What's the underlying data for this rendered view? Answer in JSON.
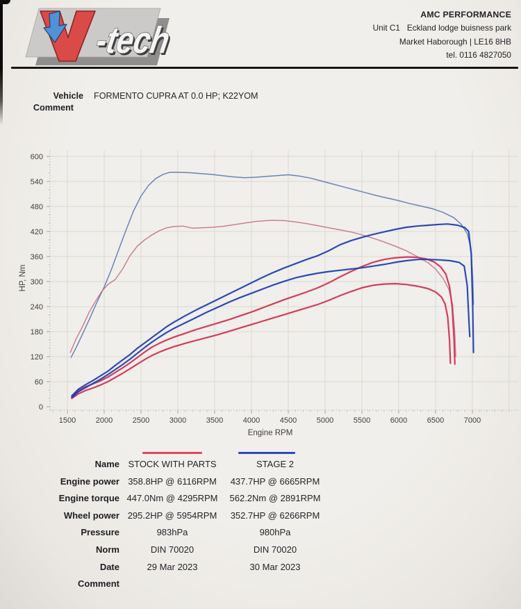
{
  "header": {
    "logo": {
      "text": "V-tech",
      "suffix": "-tech"
    },
    "company": "AMC PERFORMANCE",
    "address_line1": "Unit C1   Eckland lodge buisness park",
    "address_line2": "Market Haborough | LE16 8HB",
    "address_line3": "tel. 0116 4827050"
  },
  "vehicle": {
    "label": "Vehicle",
    "value": "FORMENTO CUPRA AT 0.0 HP; K22YOM"
  },
  "comment_label": "Comment",
  "chart_data": {
    "type": "line",
    "title": "",
    "xlabel": "Engine RPM",
    "ylabel": "HP, Nm",
    "xlim": [
      1250,
      7600
    ],
    "ylim": [
      0,
      600
    ],
    "x_ticks": [
      1500,
      2000,
      2500,
      3000,
      3500,
      4000,
      4500,
      5000,
      5500,
      6000,
      6500,
      7000
    ],
    "y_ticks": [
      0,
      60,
      120,
      180,
      240,
      300,
      360,
      420,
      480,
      540,
      600
    ],
    "grid": true,
    "legend_position": "below",
    "colors": {
      "stock_power": "#d12e4e",
      "stock_torque": "#c4798c",
      "stage2_power": "#1d3cb4",
      "stage2_torque": "#5c7cb2",
      "gridline": "#dbd8d3",
      "axis": "#b9b6b1",
      "tick_text": "#3f3e3c"
    },
    "series": [
      {
        "name": "STAGE 2 engine torque (Nm)",
        "color": "#5c7cb2",
        "width": 1.5,
        "points": [
          [
            1550,
            118
          ],
          [
            1620,
            142
          ],
          [
            1700,
            172
          ],
          [
            1800,
            210
          ],
          [
            1900,
            250
          ],
          [
            2000,
            287
          ],
          [
            2100,
            330
          ],
          [
            2200,
            378
          ],
          [
            2300,
            425
          ],
          [
            2400,
            470
          ],
          [
            2500,
            505
          ],
          [
            2600,
            530
          ],
          [
            2700,
            547
          ],
          [
            2800,
            557
          ],
          [
            2891,
            562
          ],
          [
            3000,
            562
          ],
          [
            3150,
            561
          ],
          [
            3300,
            559
          ],
          [
            3450,
            557
          ],
          [
            3600,
            554
          ],
          [
            3750,
            551
          ],
          [
            3900,
            549
          ],
          [
            4050,
            550
          ],
          [
            4200,
            552
          ],
          [
            4350,
            554
          ],
          [
            4500,
            556
          ],
          [
            4650,
            553
          ],
          [
            4800,
            548
          ],
          [
            4950,
            541
          ],
          [
            5100,
            534
          ],
          [
            5250,
            527
          ],
          [
            5400,
            520
          ],
          [
            5550,
            513
          ],
          [
            5700,
            506
          ],
          [
            5850,
            500
          ],
          [
            6000,
            494
          ],
          [
            6150,
            487
          ],
          [
            6300,
            481
          ],
          [
            6450,
            475
          ],
          [
            6600,
            466
          ],
          [
            6750,
            453
          ],
          [
            6850,
            437
          ],
          [
            6930,
            415
          ],
          [
            6980,
            380
          ],
          [
            7005,
            310
          ],
          [
            7015,
            245
          ]
        ]
      },
      {
        "name": "STOCK WITH PARTS engine torque (Nm)",
        "color": "#c4798c",
        "width": 1.5,
        "points": [
          [
            1540,
            130
          ],
          [
            1620,
            163
          ],
          [
            1700,
            190
          ],
          [
            1800,
            228
          ],
          [
            1880,
            252
          ],
          [
            1960,
            275
          ],
          [
            2050,
            293
          ],
          [
            2150,
            305
          ],
          [
            2250,
            330
          ],
          [
            2350,
            362
          ],
          [
            2450,
            385
          ],
          [
            2550,
            400
          ],
          [
            2650,
            412
          ],
          [
            2750,
            422
          ],
          [
            2850,
            429
          ],
          [
            2950,
            432
          ],
          [
            3070,
            433
          ],
          [
            3200,
            428
          ],
          [
            3330,
            429
          ],
          [
            3460,
            430
          ],
          [
            3600,
            432
          ],
          [
            3750,
            436
          ],
          [
            3900,
            440
          ],
          [
            4050,
            444
          ],
          [
            4200,
            446
          ],
          [
            4295,
            447
          ],
          [
            4450,
            446
          ],
          [
            4600,
            443
          ],
          [
            4750,
            439
          ],
          [
            4900,
            434
          ],
          [
            5050,
            429
          ],
          [
            5200,
            424
          ],
          [
            5350,
            419
          ],
          [
            5500,
            412
          ],
          [
            5650,
            404
          ],
          [
            5800,
            395
          ],
          [
            5950,
            385
          ],
          [
            6100,
            374
          ],
          [
            6250,
            360
          ],
          [
            6400,
            345
          ],
          [
            6500,
            330
          ],
          [
            6600,
            308
          ],
          [
            6680,
            282
          ],
          [
            6730,
            245
          ],
          [
            6760,
            180
          ],
          [
            6775,
            120
          ]
        ]
      },
      {
        "name": "STOCK WITH PARTS wheel power (HP)",
        "color": "#d12e4e",
        "width": 2.2,
        "points": [
          [
            1560,
            20
          ],
          [
            1650,
            31
          ],
          [
            1750,
            39
          ],
          [
            1850,
            45
          ],
          [
            1950,
            52
          ],
          [
            2050,
            60
          ],
          [
            2150,
            70
          ],
          [
            2250,
            80
          ],
          [
            2350,
            91
          ],
          [
            2450,
            102
          ],
          [
            2550,
            113
          ],
          [
            2650,
            123
          ],
          [
            2750,
            131
          ],
          [
            2850,
            138
          ],
          [
            2950,
            144
          ],
          [
            3100,
            152
          ],
          [
            3250,
            159
          ],
          [
            3400,
            166
          ],
          [
            3550,
            173
          ],
          [
            3700,
            181
          ],
          [
            3850,
            189
          ],
          [
            4000,
            197
          ],
          [
            4150,
            205
          ],
          [
            4300,
            213
          ],
          [
            4450,
            221
          ],
          [
            4600,
            229
          ],
          [
            4750,
            237
          ],
          [
            4900,
            245
          ],
          [
            5050,
            255
          ],
          [
            5200,
            266
          ],
          [
            5350,
            276
          ],
          [
            5500,
            285
          ],
          [
            5650,
            291
          ],
          [
            5800,
            294
          ],
          [
            5954,
            295
          ],
          [
            6100,
            293
          ],
          [
            6250,
            289
          ],
          [
            6400,
            283
          ],
          [
            6500,
            275
          ],
          [
            6580,
            263
          ],
          [
            6630,
            246
          ],
          [
            6665,
            215
          ],
          [
            6690,
            160
          ],
          [
            6702,
            104
          ]
        ]
      },
      {
        "name": "STOCK WITH PARTS engine power (HP)",
        "color": "#d12e4e",
        "width": 2.2,
        "points": [
          [
            1560,
            24
          ],
          [
            1650,
            38
          ],
          [
            1750,
            48
          ],
          [
            1850,
            55
          ],
          [
            1950,
            62
          ],
          [
            2050,
            71
          ],
          [
            2150,
            82
          ],
          [
            2250,
            93
          ],
          [
            2350,
            105
          ],
          [
            2450,
            118
          ],
          [
            2550,
            131
          ],
          [
            2650,
            143
          ],
          [
            2750,
            152
          ],
          [
            2850,
            160
          ],
          [
            2950,
            167
          ],
          [
            3100,
            176
          ],
          [
            3250,
            185
          ],
          [
            3400,
            193
          ],
          [
            3550,
            201
          ],
          [
            3700,
            209
          ],
          [
            3850,
            218
          ],
          [
            4000,
            227
          ],
          [
            4150,
            237
          ],
          [
            4300,
            247
          ],
          [
            4450,
            257
          ],
          [
            4600,
            266
          ],
          [
            4750,
            275
          ],
          [
            4900,
            285
          ],
          [
            5050,
            297
          ],
          [
            5200,
            311
          ],
          [
            5350,
            324
          ],
          [
            5500,
            336
          ],
          [
            5650,
            346
          ],
          [
            5800,
            353
          ],
          [
            5950,
            357
          ],
          [
            6116,
            359
          ],
          [
            6250,
            358
          ],
          [
            6380,
            354
          ],
          [
            6480,
            347
          ],
          [
            6570,
            335
          ],
          [
            6640,
            318
          ],
          [
            6690,
            288
          ],
          [
            6725,
            240
          ],
          [
            6750,
            165
          ],
          [
            6762,
            102
          ]
        ]
      },
      {
        "name": "STAGE 2 wheel power (HP)",
        "color": "#1d3cb4",
        "width": 2.2,
        "points": [
          [
            1560,
            22
          ],
          [
            1650,
            36
          ],
          [
            1750,
            46
          ],
          [
            1850,
            56
          ],
          [
            1950,
            66
          ],
          [
            2050,
            77
          ],
          [
            2150,
            89
          ],
          [
            2250,
            101
          ],
          [
            2350,
            114
          ],
          [
            2450,
            128
          ],
          [
            2550,
            142
          ],
          [
            2650,
            155
          ],
          [
            2750,
            167
          ],
          [
            2850,
            178
          ],
          [
            2950,
            188
          ],
          [
            3100,
            201
          ],
          [
            3250,
            214
          ],
          [
            3400,
            227
          ],
          [
            3550,
            239
          ],
          [
            3700,
            251
          ],
          [
            3850,
            262
          ],
          [
            4000,
            272
          ],
          [
            4150,
            282
          ],
          [
            4300,
            292
          ],
          [
            4450,
            301
          ],
          [
            4600,
            309
          ],
          [
            4750,
            315
          ],
          [
            4900,
            320
          ],
          [
            5050,
            324
          ],
          [
            5200,
            327
          ],
          [
            5350,
            330
          ],
          [
            5500,
            333
          ],
          [
            5650,
            337
          ],
          [
            5800,
            341
          ],
          [
            5950,
            346
          ],
          [
            6100,
            350
          ],
          [
            6266,
            353
          ],
          [
            6400,
            353
          ],
          [
            6550,
            352
          ],
          [
            6700,
            350
          ],
          [
            6820,
            346
          ],
          [
            6890,
            337
          ],
          [
            6930,
            290
          ],
          [
            6955,
            200
          ],
          [
            6965,
            168
          ]
        ]
      },
      {
        "name": "STAGE 2 engine power (HP)",
        "color": "#1d3cb4",
        "width": 2.2,
        "points": [
          [
            1560,
            26
          ],
          [
            1650,
            42
          ],
          [
            1750,
            53
          ],
          [
            1850,
            63
          ],
          [
            1950,
            74
          ],
          [
            2050,
            85
          ],
          [
            2150,
            99
          ],
          [
            2250,
            112
          ],
          [
            2350,
            125
          ],
          [
            2450,
            140
          ],
          [
            2550,
            153
          ],
          [
            2650,
            166
          ],
          [
            2750,
            179
          ],
          [
            2850,
            192
          ],
          [
            2950,
            203
          ],
          [
            3100,
            218
          ],
          [
            3250,
            232
          ],
          [
            3400,
            245
          ],
          [
            3550,
            258
          ],
          [
            3700,
            271
          ],
          [
            3850,
            284
          ],
          [
            4000,
            297
          ],
          [
            4150,
            310
          ],
          [
            4300,
            322
          ],
          [
            4450,
            333
          ],
          [
            4600,
            343
          ],
          [
            4750,
            353
          ],
          [
            4900,
            362
          ],
          [
            5050,
            374
          ],
          [
            5200,
            388
          ],
          [
            5350,
            398
          ],
          [
            5500,
            406
          ],
          [
            5650,
            413
          ],
          [
            5800,
            419
          ],
          [
            5950,
            425
          ],
          [
            6100,
            430
          ],
          [
            6250,
            433
          ],
          [
            6400,
            435
          ],
          [
            6550,
            437
          ],
          [
            6665,
            438
          ],
          [
            6800,
            435
          ],
          [
            6900,
            429
          ],
          [
            6950,
            420
          ],
          [
            6985,
            365
          ],
          [
            7005,
            240
          ],
          [
            7015,
            130
          ]
        ]
      }
    ]
  },
  "legend": [
    {
      "label": "STOCK WITH PARTS",
      "color": "#e0475f"
    },
    {
      "label": "STAGE 2",
      "color": "#2d49ba"
    }
  ],
  "results_table": {
    "rows": [
      {
        "label": "Name",
        "col1": "STOCK WITH PARTS",
        "col2": "STAGE 2"
      },
      {
        "label": "Engine power",
        "col1": "358.8HP @ 6116RPM",
        "col2": "437.7HP @ 6665RPM"
      },
      {
        "label": "Engine torque",
        "col1": "447.0Nm @ 4295RPM",
        "col2": "562.2Nm @ 2891RPM"
      },
      {
        "label": "Wheel power",
        "col1": "295.2HP @ 5954RPM",
        "col2": "352.7HP @ 6266RPM"
      },
      {
        "label": "Pressure",
        "col1": "983hPa",
        "col2": "980hPa"
      },
      {
        "label": "Norm",
        "col1": "DIN 70020",
        "col2": "DIN 70020"
      },
      {
        "label": "Date",
        "col1": "29 Mar 2023",
        "col2": "30 Mar 2023"
      },
      {
        "label": "Comment",
        "col1": "",
        "col2": ""
      }
    ]
  }
}
